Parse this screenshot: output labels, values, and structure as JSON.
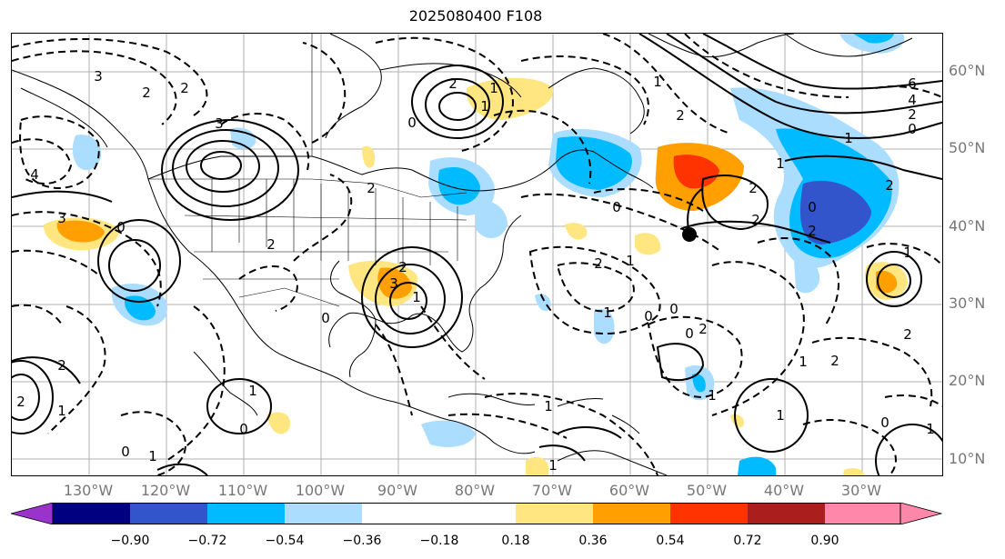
{
  "title": "2025080400 F108",
  "lat_labels": [
    "60°N",
    "50°N",
    "40°N",
    "30°N",
    "20°N",
    "10°N"
  ],
  "lon_labels": [
    "130°W",
    "120°W",
    "110°W",
    "100°W",
    "90°W",
    "80°W",
    "70°W",
    "60°W",
    "50°W",
    "40°W",
    "30°W"
  ],
  "colorbar": {
    "ticks": [
      "−0.90",
      "−0.72",
      "−0.54",
      "−0.36",
      "−0.18",
      "0.18",
      "0.36",
      "0.54",
      "0.72",
      "0.90"
    ],
    "colors": {
      "under": "#9933cc",
      "bin1": "#000080",
      "bin2": "#3355cc",
      "bin3": "#00bbff",
      "bin4": "#aaddff",
      "neutral": "#ffffff",
      "bin6": "#ffe680",
      "bin7": "#ffa000",
      "bin8": "#ff3300",
      "bin9": "#aa1e1e",
      "over": "#ff88aa"
    }
  },
  "contour_labels": [
    "3",
    "2",
    "3",
    "2",
    "2",
    "1",
    "1",
    "0",
    "2",
    "2",
    "4",
    "3",
    "0",
    "2",
    "1",
    "2",
    "2",
    "3",
    "1",
    "0",
    "0",
    "1",
    "2",
    "2",
    "1",
    "6",
    "4",
    "2",
    "0",
    "1",
    "2",
    "2",
    "2",
    "0",
    "2",
    "1",
    "1",
    "2",
    "1",
    "2",
    "1",
    "0",
    "0",
    "1",
    "0",
    "1",
    "2",
    "1",
    "1",
    "0",
    "1",
    "0",
    "1",
    "1",
    "0"
  ]
}
